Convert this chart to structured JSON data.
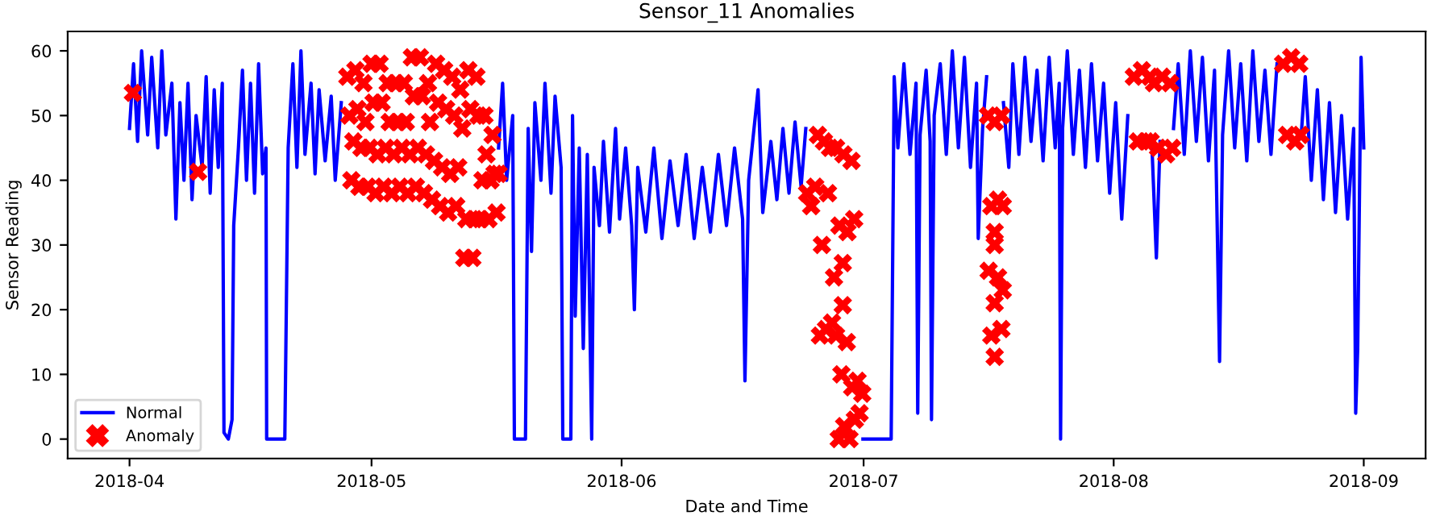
{
  "chart_data": {
    "type": "line",
    "title": "Sensor_11 Anomalies",
    "xlabel": "Date and Time",
    "ylabel": "Sensor Reading",
    "xlim": [
      "2018-03-24T08:00",
      "2018-09-08T16:00"
    ],
    "ylim": [
      -3,
      63
    ],
    "xticks": [
      {
        "value": "2018-04-01",
        "label": "2018-04"
      },
      {
        "value": "2018-05-01",
        "label": "2018-05"
      },
      {
        "value": "2018-06-01",
        "label": "2018-06"
      },
      {
        "value": "2018-07-01",
        "label": "2018-07"
      },
      {
        "value": "2018-08-01",
        "label": "2018-08"
      },
      {
        "value": "2018-09-01",
        "label": "2018-09"
      }
    ],
    "yticks": [
      0,
      10,
      20,
      30,
      40,
      50,
      60
    ],
    "grid": false,
    "legend": "bottom left",
    "series": [
      {
        "name": "Normal",
        "color": "#0000ff",
        "marker": "none",
        "line_style": "solid",
        "x": [
          "2018-04-01T00:00",
          "2018-04-01T12:00",
          "2018-04-02T00:00",
          "2018-04-02T12:00",
          "2018-04-03T06:00",
          "2018-04-03T18:00",
          "2018-04-04T12:00",
          "2018-04-05T00:00",
          "2018-04-05T12:00",
          "2018-04-06T06:00",
          "2018-04-06T18:00",
          "2018-04-07T06:00",
          "2018-04-07T18:00",
          "2018-04-08T06:00",
          "2018-04-08T18:00",
          "2018-04-09T06:00",
          "2018-04-10T00:00",
          "2018-04-10T12:00",
          "2018-04-11T00:00",
          "2018-04-11T12:00",
          "2018-04-12T00:00",
          "2018-04-12T12:00",
          "2018-04-12T17:00",
          "2018-04-13T06:00",
          "2018-04-13T17:00",
          "2018-04-13T22:00",
          "2018-04-14T12:00",
          "2018-04-15T00:00",
          "2018-04-15T12:00",
          "2018-04-16T00:00",
          "2018-04-16T12:00",
          "2018-04-17T00:00",
          "2018-04-17T12:00",
          "2018-04-17T22:00",
          "2018-04-18T00:00",
          "2018-04-20T06:00",
          "2018-04-20T16:00",
          "2018-04-21T06:00",
          "2018-04-21T18:00",
          "2018-04-22T06:00",
          "2018-04-22T18:00",
          "2018-04-23T12:00",
          "2018-04-24T00:00",
          "2018-04-24T12:00",
          "2018-04-25T06:00",
          "2018-04-26T00:00",
          "2018-04-26T12:00",
          "2018-04-27T06:00",
          "2018-04-27T18:00",
          "2018-05-16T18:00",
          "2018-05-17T06:00",
          "2018-05-17T18:00",
          "2018-05-18T12:00",
          "2018-05-18T17:00",
          "2018-05-20T02:00",
          "2018-05-20T10:00",
          "2018-05-20T20:00",
          "2018-05-21T06:00",
          "2018-05-22T00:00",
          "2018-05-22T12:00",
          "2018-05-23T06:00",
          "2018-05-23T18:00",
          "2018-05-24T12:00",
          "2018-05-24T17:00",
          "2018-05-25T17:00",
          "2018-05-25T22:00",
          "2018-05-26T06:00",
          "2018-05-26T18:00",
          "2018-05-27T06:00",
          "2018-05-27T18:00",
          "2018-05-28T07:00",
          "2018-05-28T14:00",
          "2018-05-29T06:00",
          "2018-05-29T18:00",
          "2018-05-30T12:00",
          "2018-05-31T06:00",
          "2018-05-31T18:00",
          "2018-06-01T12:00",
          "2018-06-02T06:00",
          "2018-06-02T14:00",
          "2018-06-03T00:00",
          "2018-06-04T00:00",
          "2018-06-05T00:00",
          "2018-06-06T00:00",
          "2018-06-07T00:00",
          "2018-06-08T00:00",
          "2018-06-09T00:00",
          "2018-06-10T00:00",
          "2018-06-11T00:00",
          "2018-06-12T00:00",
          "2018-06-13T00:00",
          "2018-06-14T00:00",
          "2018-06-15T00:00",
          "2018-06-16T00:00",
          "2018-06-16T07:00",
          "2018-06-16T18:00",
          "2018-06-17T22:00",
          "2018-06-18T12:00",
          "2018-06-19T12:00",
          "2018-06-20T06:00",
          "2018-06-21T00:00",
          "2018-06-21T18:00",
          "2018-06-22T12:00",
          "2018-06-23T06:00",
          "2018-06-23T20:00",
          "2018-06-24T00:00",
          "2018-06-30T22:00",
          "2018-07-04T10:00",
          "2018-07-04T19:00",
          "2018-07-05T06:00",
          "2018-07-06T00:00",
          "2018-07-06T18:00",
          "2018-07-07T12:00",
          "2018-07-07T17:00",
          "2018-07-08T00:00",
          "2018-07-08T18:00",
          "2018-07-09T06:00",
          "2018-07-09T10:00",
          "2018-07-09T18:00",
          "2018-07-10T12:00",
          "2018-07-11T06:00",
          "2018-07-12T00:00",
          "2018-07-12T18:00",
          "2018-07-13T12:00",
          "2018-07-14T06:00",
          "2018-07-15T00:00",
          "2018-07-15T05:00",
          "2018-07-15T18:00",
          "2018-07-16T06:00",
          "2018-07-16T09:00",
          "2018-07-18T08:00",
          "2018-07-19T00:00",
          "2018-07-19T12:00",
          "2018-07-20T06:00",
          "2018-07-21T00:00",
          "2018-07-21T18:00",
          "2018-07-22T12:00",
          "2018-07-23T06:00",
          "2018-07-24T00:00",
          "2018-07-24T18:00",
          "2018-07-25T06:00",
          "2018-07-25T10:00",
          "2018-07-25T16:00",
          "2018-07-26T06:00",
          "2018-07-27T00:00",
          "2018-07-27T18:00",
          "2018-07-28T12:00",
          "2018-07-29T06:00",
          "2018-07-30T00:00",
          "2018-07-30T18:00",
          "2018-07-31T12:00",
          "2018-08-01T06:00",
          "2018-08-02T00:00",
          "2018-08-02T18:00",
          "2018-08-03T08:00",
          "2018-08-05T18:00",
          "2018-08-06T07:00",
          "2018-08-06T18:00",
          "2018-08-07T00:00",
          "2018-08-08T10:00",
          "2018-08-09T00:00",
          "2018-08-09T18:00",
          "2018-08-10T12:00",
          "2018-08-11T06:00",
          "2018-08-12T00:00",
          "2018-08-12T18:00",
          "2018-08-13T12:00",
          "2018-08-14T03:00",
          "2018-08-14T12:00",
          "2018-08-15T06:00",
          "2018-08-16T00:00",
          "2018-08-16T18:00",
          "2018-08-17T12:00",
          "2018-08-18T06:00",
          "2018-08-19T00:00",
          "2018-08-19T18:00",
          "2018-08-20T12:00",
          "2018-08-21T06:00",
          "2018-08-21T18:00",
          "2018-08-24T06:00",
          "2018-08-24T18:00",
          "2018-08-25T12:00",
          "2018-08-26T06:00",
          "2018-08-27T00:00",
          "2018-08-27T18:00",
          "2018-08-28T12:00",
          "2018-08-29T06:00",
          "2018-08-30T00:00",
          "2018-08-30T18:00",
          "2018-08-31T00:00",
          "2018-08-31T06:00",
          "2018-08-31T16:00",
          "2018-09-01T00:00"
        ],
        "values": [
          48,
          58,
          46,
          60,
          47,
          59,
          45,
          60,
          47,
          55,
          34,
          52,
          40,
          55,
          37,
          50,
          42,
          56,
          38,
          54,
          42,
          55,
          1,
          0,
          3,
          33,
          45,
          57,
          40,
          55,
          38,
          58,
          41,
          45,
          0,
          0,
          45,
          58,
          42,
          60,
          44,
          55,
          41,
          54,
          43,
          53,
          40,
          52,
          null,
          45,
          55,
          40,
          50,
          0,
          0,
          48,
          29,
          52,
          40,
          55,
          38,
          53,
          42,
          0,
          0,
          50,
          19,
          45,
          14,
          44,
          0,
          42,
          33,
          46,
          32,
          48,
          34,
          45,
          33,
          20,
          42,
          32,
          45,
          31,
          43,
          33,
          44,
          31,
          42,
          32,
          44,
          33,
          45,
          34,
          9,
          40,
          54,
          35,
          46,
          37,
          48,
          38,
          49,
          39,
          48,
          null,
          0,
          0,
          56,
          45,
          58,
          44,
          55,
          4,
          47,
          57,
          46,
          3,
          50,
          58,
          44,
          60,
          45,
          59,
          42,
          55,
          31,
          48,
          56,
          null,
          52,
          42,
          58,
          44,
          59,
          46,
          57,
          43,
          59,
          45,
          55,
          0,
          48,
          60,
          44,
          57,
          42,
          58,
          43,
          55,
          38,
          52,
          34,
          50,
          null,
          45,
          28,
          46,
          null,
          48,
          58,
          44,
          60,
          46,
          59,
          43,
          57,
          12,
          47,
          60,
          45,
          58,
          43,
          60,
          46,
          57,
          44,
          58,
          null,
          47,
          56,
          40,
          54,
          37,
          52,
          35,
          50,
          34,
          48,
          4,
          14,
          59,
          45
        ]
      },
      {
        "name": "Anomaly",
        "type": "scatter",
        "color": "#ff0000",
        "marker": "cross",
        "x": [
          "2018-04-01T10:00",
          "2018-04-09T12:00",
          "2018-04-28T00:00",
          "2018-04-28T06:00",
          "2018-04-28T12:00",
          "2018-04-28T18:00",
          "2018-04-29T00:00",
          "2018-04-29T06:00",
          "2018-04-29T12:00",
          "2018-04-29T18:00",
          "2018-04-30T00:00",
          "2018-04-30T06:00",
          "2018-04-30T12:00",
          "2018-04-30T18:00",
          "2018-05-01T00:00",
          "2018-05-01T06:00",
          "2018-05-01T12:00",
          "2018-05-01T18:00",
          "2018-05-02T00:00",
          "2018-05-02T06:00",
          "2018-05-02T12:00",
          "2018-05-02T18:00",
          "2018-05-03T00:00",
          "2018-05-03T06:00",
          "2018-05-03T12:00",
          "2018-05-03T18:00",
          "2018-05-04T00:00",
          "2018-05-04T06:00",
          "2018-05-04T12:00",
          "2018-05-04T18:00",
          "2018-05-05T00:00",
          "2018-05-05T06:00",
          "2018-05-05T12:00",
          "2018-05-05T18:00",
          "2018-05-06T00:00",
          "2018-05-06T06:00",
          "2018-05-06T12:00",
          "2018-05-06T18:00",
          "2018-05-07T00:00",
          "2018-05-07T06:00",
          "2018-05-07T12:00",
          "2018-05-07T18:00",
          "2018-05-08T00:00",
          "2018-05-08T06:00",
          "2018-05-08T12:00",
          "2018-05-08T18:00",
          "2018-05-09T00:00",
          "2018-05-09T06:00",
          "2018-05-09T12:00",
          "2018-05-09T18:00",
          "2018-05-10T00:00",
          "2018-05-10T06:00",
          "2018-05-10T12:00",
          "2018-05-10T18:00",
          "2018-05-11T00:00",
          "2018-05-11T06:00",
          "2018-05-11T12:00",
          "2018-05-11T18:00",
          "2018-05-12T00:00",
          "2018-05-12T06:00",
          "2018-05-12T12:00",
          "2018-05-12T18:00",
          "2018-05-13T00:00",
          "2018-05-13T06:00",
          "2018-05-13T12:00",
          "2018-05-13T18:00",
          "2018-05-14T00:00",
          "2018-05-14T06:00",
          "2018-05-14T12:00",
          "2018-05-14T18:00",
          "2018-05-15T00:00",
          "2018-05-15T06:00",
          "2018-05-15T12:00",
          "2018-05-15T18:00",
          "2018-05-16T00:00",
          "2018-05-16T06:00",
          "2018-05-16T12:00",
          "2018-05-16T18:00",
          "2018-06-24T00:00",
          "2018-06-24T12:00",
          "2018-06-25T00:00",
          "2018-06-25T08:00",
          "2018-06-25T14:00",
          "2018-06-25T20:00",
          "2018-06-26T02:00",
          "2018-06-26T08:00",
          "2018-06-26T14:00",
          "2018-06-26T20:00",
          "2018-06-27T02:00",
          "2018-06-27T08:00",
          "2018-06-27T14:00",
          "2018-06-28T00:00",
          "2018-06-28T12:00",
          "2018-06-29T00:00",
          "2018-06-29T12:00",
          "2018-06-29T20:00",
          "2018-06-28T10:00",
          "2018-06-28T10:00",
          "2018-06-27T14:00",
          "2018-06-27T22:00",
          "2018-06-28T06:00",
          "2018-06-28T14:00",
          "2018-06-28T22:00",
          "2018-06-29T06:00",
          "2018-06-29T14:00",
          "2018-06-29T22:00",
          "2018-06-30T06:00",
          "2018-06-30T12:00",
          "2018-06-30T20:00",
          "2018-07-16T10:00",
          "2018-07-16T20:00",
          "2018-07-17T06:00",
          "2018-07-17T16:00",
          "2018-07-18T02:00",
          "2018-07-18T06:00",
          "2018-07-17T06:00",
          "2018-07-17T06:00",
          "2018-07-16T12:00",
          "2018-07-16T20:00",
          "2018-07-17T06:00",
          "2018-07-17T16:00",
          "2018-07-18T02:00",
          "2018-07-18T06:00",
          "2018-07-17T06:00",
          "2018-08-03T12:00",
          "2018-08-04T00:00",
          "2018-08-04T12:00",
          "2018-08-05T00:00",
          "2018-08-05T12:00",
          "2018-08-05T14:00",
          "2018-08-06T00:00",
          "2018-08-06T12:00",
          "2018-08-07T00:00",
          "2018-08-07T12:00",
          "2018-08-08T00:00",
          "2018-08-08T06:00",
          "2018-08-22T00:00",
          "2018-08-22T12:00",
          "2018-08-23T00:00",
          "2018-08-23T12:00",
          "2018-08-24T00:00",
          "2018-08-24T04:00"
        ],
        "values": [
          53.5,
          41.3,
          56,
          50,
          40,
          46,
          57,
          51,
          39,
          45,
          55,
          49,
          39,
          45,
          58,
          52,
          38,
          44,
          58,
          52,
          39,
          45,
          55,
          49,
          38,
          44,
          55,
          49,
          39,
          45,
          55,
          49,
          38,
          44,
          59,
          53,
          39,
          45,
          59,
          53,
          38,
          44,
          55,
          49,
          37,
          43,
          58,
          52,
          36,
          42,
          57,
          51,
          35,
          41,
          56,
          50,
          36,
          42,
          54,
          48,
          28,
          34,
          57,
          51,
          28,
          34,
          56,
          50,
          34,
          40,
          50,
          44,
          34,
          40,
          47,
          41,
          35,
          41,
          38,
          36,
          39,
          47,
          16,
          30,
          46,
          17,
          38,
          45,
          18,
          25,
          45,
          33,
          44,
          32,
          43,
          34,
          27.2,
          20.7,
          16,
          0,
          10,
          2,
          15,
          0,
          8,
          3,
          9,
          4,
          7,
          50,
          36,
          49,
          37,
          50,
          36,
          32,
          30,
          26,
          16,
          21,
          25,
          17,
          23,
          12.7,
          56,
          46,
          57,
          46,
          56,
          46,
          55,
          45,
          56,
          44,
          55,
          45,
          58,
          47,
          59,
          46,
          58,
          47
        ]
      }
    ]
  }
}
